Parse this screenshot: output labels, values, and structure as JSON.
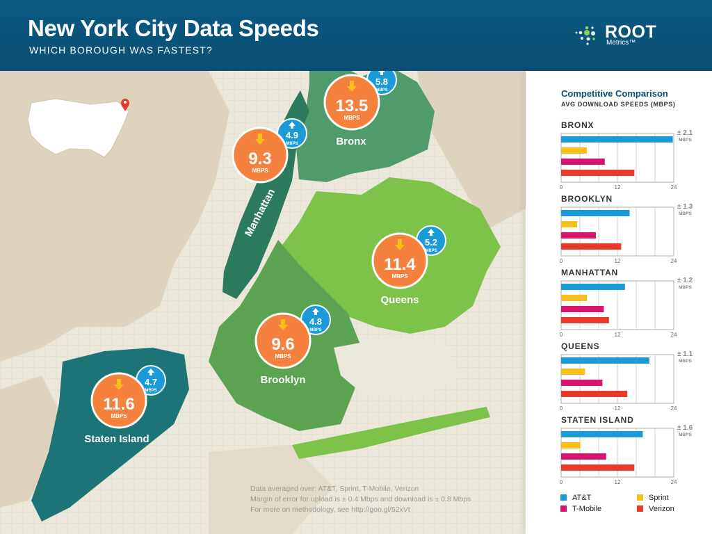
{
  "header": {
    "title": "New York City Data Speeds",
    "subtitle": "WHICH BOROUGH WAS FASTEST?",
    "logo_word": "ROOT",
    "logo_sub": "Metrics™"
  },
  "map_bubbles": [
    {
      "borough": "Bronx",
      "download": "13.5",
      "upload": "5.8",
      "unit": "MBPS"
    },
    {
      "borough": "Manhattan",
      "download": "9.3",
      "upload": "4.9",
      "unit": "MBPS"
    },
    {
      "borough": "Queens",
      "download": "11.4",
      "upload": "5.2",
      "unit": "MBPS"
    },
    {
      "borough": "Brooklyn",
      "download": "9.6",
      "upload": "4.8",
      "unit": "MBPS"
    },
    {
      "borough": "Staten Island",
      "download": "11.6",
      "upload": "4.7",
      "unit": "MBPS"
    }
  ],
  "notes": {
    "line1": "Data averaged over: AT&T, Sprint, T-Mobile, Verizon",
    "line2": "Margin of error for upload is ± 0.4 Mbps and download is ± 0.8 Mbps",
    "line3": "For more on methodology, see http://goo.gl/52xVt"
  },
  "panel": {
    "title": "Competitive Comparison",
    "subtitle": "AVG DOWNLOAD SPEEDS (MBPS)"
  },
  "chart_data": {
    "type": "bar",
    "orientation": "horizontal",
    "title": "Competitive Comparison",
    "subtitle": "AVG DOWNLOAD SPEEDS (MBPS)",
    "xlim": [
      0,
      24
    ],
    "xticks": [
      "0",
      "12",
      "24"
    ],
    "series_names": [
      "AT&T",
      "T-Mobile",
      "Sprint",
      "Verizon"
    ],
    "colors": {
      "AT&T": "#1a9bd7",
      "Sprint": "#f6bf1a",
      "T-Mobile": "#d6156f",
      "Verizon": "#e83a2b"
    },
    "groups": [
      {
        "name": "BRONX",
        "margin": "± 2.1",
        "margin_unit": "MBPS",
        "values": {
          "AT&T": 23.8,
          "Sprint": 5.5,
          "T-Mobile": 9.3,
          "Verizon": 15.6
        }
      },
      {
        "name": "BROOKLYN",
        "margin": "± 1.3",
        "margin_unit": "MBPS",
        "values": {
          "AT&T": 14.6,
          "Sprint": 3.4,
          "T-Mobile": 7.4,
          "Verizon": 12.8
        }
      },
      {
        "name": "MANHATTAN",
        "margin": "± 1.2",
        "margin_unit": "MBPS",
        "values": {
          "AT&T": 13.6,
          "Sprint": 5.5,
          "T-Mobile": 9.1,
          "Verizon": 10.2
        }
      },
      {
        "name": "QUEENS",
        "margin": "± 1.1",
        "margin_unit": "MBPS",
        "values": {
          "AT&T": 18.8,
          "Sprint": 5.1,
          "T-Mobile": 8.8,
          "Verizon": 14.1
        }
      },
      {
        "name": "STATEN ISLAND",
        "margin": "± 1.6",
        "margin_unit": "MBPS",
        "values": {
          "AT&T": 17.4,
          "Sprint": 4.1,
          "T-Mobile": 9.6,
          "Verizon": 15.6
        }
      }
    ]
  },
  "legend": [
    {
      "name": "AT&T",
      "color": "#1a9bd7"
    },
    {
      "name": "Sprint",
      "color": "#f6bf1a"
    },
    {
      "name": "T-Mobile",
      "color": "#d6156f"
    },
    {
      "name": "Verizon",
      "color": "#e83a2b"
    }
  ]
}
